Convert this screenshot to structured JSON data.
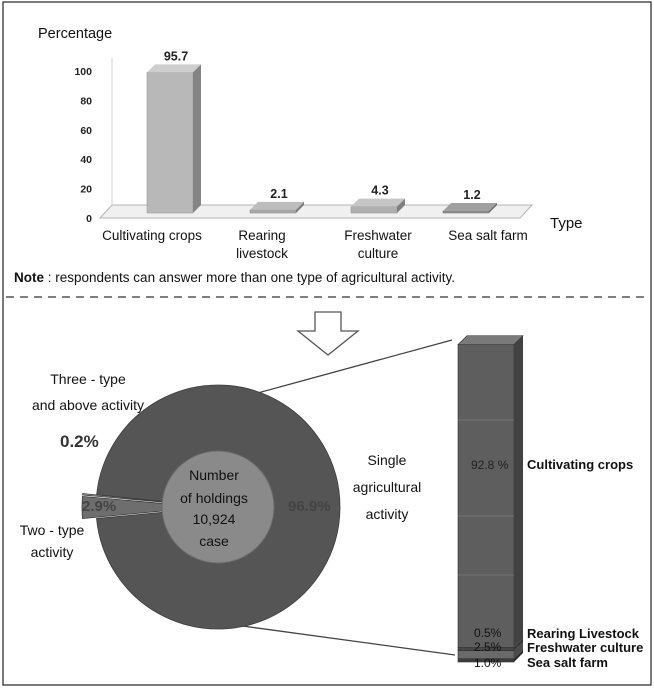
{
  "chart_data": [
    {
      "type": "bar",
      "ylabel": "Percentage",
      "xlabel": "Type",
      "ylim": [
        0,
        100
      ],
      "yticks": [
        0,
        20,
        40,
        60,
        80,
        100
      ],
      "categories": [
        {
          "line1": "Cultivating crops",
          "line2": ""
        },
        {
          "line1": "Rearing",
          "line2": "livestock"
        },
        {
          "line1": "Freshwater",
          "line2": "culture"
        },
        {
          "line1": "Sea salt farm",
          "line2": ""
        }
      ],
      "values": [
        95.7,
        2.1,
        4.3,
        1.2
      ],
      "value_labels": [
        "95.7",
        "2.1",
        "4.3",
        "1.2"
      ],
      "colors": [
        "#b8b8b8",
        "#a9a9a9",
        "#b0b0b0",
        "#8f8f8f"
      ]
    },
    {
      "type": "pie",
      "center_label": [
        "Number",
        "of holdings",
        "10,924",
        "case"
      ],
      "slices": [
        {
          "name_lines": [
            "Single",
            "agricultural",
            "activity"
          ],
          "value": 96.9,
          "label": "96.9%"
        },
        {
          "name_lines": [
            "Two - type",
            "activity"
          ],
          "value": 2.9,
          "label": "2.9%"
        },
        {
          "name_lines": [
            "Three - type",
            "and above activity"
          ],
          "value": 0.2,
          "label": "0.2%"
        }
      ],
      "colors": [
        "#555555",
        "#6e6e6e",
        "#999999"
      ]
    },
    {
      "type": "bar",
      "stacked": true,
      "segments": [
        {
          "name": "Cultivating crops",
          "value": 92.8,
          "label": "92.8 %",
          "color": "#5e5e5e"
        },
        {
          "name": "Rearing Livestock",
          "value": 0.5,
          "label": "0.5%",
          "color": "#484848"
        },
        {
          "name": "Freshwater culture",
          "value": 2.5,
          "label": "2.5%",
          "color": "#6a6a6a"
        },
        {
          "name": "Sea salt farm",
          "value": 1.0,
          "label": "1.0%",
          "color": "#3c3c3c"
        }
      ]
    }
  ],
  "note": {
    "bold": "Note",
    "text": " : respondents can answer more than one type of agricultural activity."
  }
}
